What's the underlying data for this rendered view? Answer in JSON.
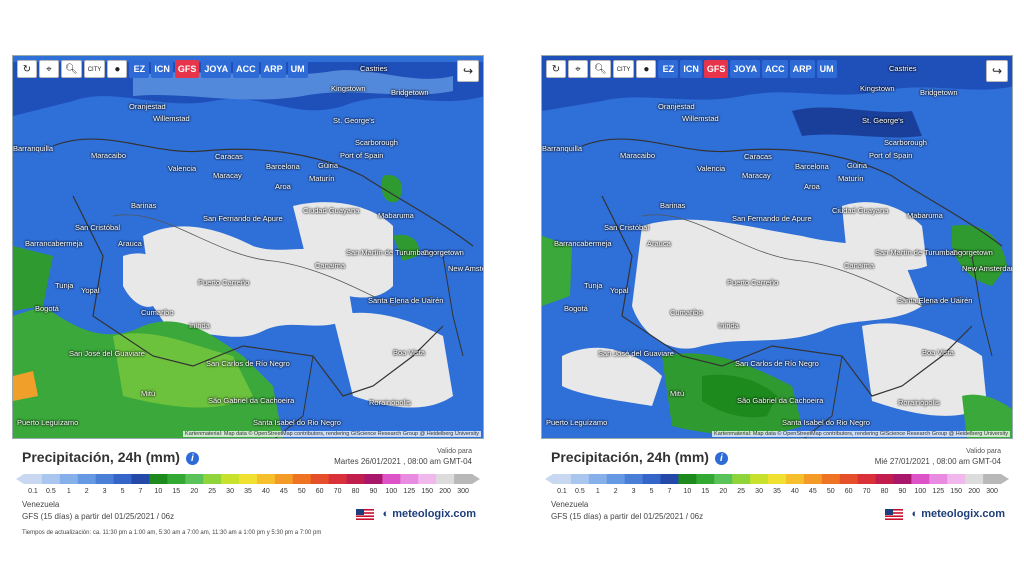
{
  "toolbar": {
    "icons": [
      "refresh-icon",
      "location-pin-icon",
      "zoom-icon",
      "city-icon",
      "dot-icon"
    ],
    "city_label": "CITY",
    "models": [
      "EZ",
      "ICN",
      "GFS",
      "JOYA",
      "ACC",
      "ARP",
      "UM"
    ],
    "active_model": "GFS"
  },
  "legend": {
    "title": "Precipitación, 24h (mm)",
    "scale_values": [
      "0.1",
      "0.5",
      "1",
      "2",
      "3",
      "5",
      "7",
      "10",
      "15",
      "20",
      "25",
      "30",
      "35",
      "40",
      "45",
      "50",
      "60",
      "70",
      "80",
      "90",
      "100",
      "125",
      "150",
      "200",
      "300"
    ],
    "colors": [
      "#c8d8f0",
      "#a9c6ef",
      "#86b0ea",
      "#6699e3",
      "#4a7fd8",
      "#3565c8",
      "#2449a9",
      "#1c8a1c",
      "#33a833",
      "#59c259",
      "#8fd43a",
      "#c8e12d",
      "#f0e030",
      "#f5c02c",
      "#f39a27",
      "#ee7424",
      "#e5502a",
      "#d9303a",
      "#c21e4d",
      "#a9176b",
      "#dd54c8",
      "#e98be0",
      "#f0b8ed",
      "#dcdcdc",
      "#b8b8b8"
    ]
  },
  "attribution": "Kartenmaterial: Map data © OpenStreetMap contributors, rendering GIScience Research Group @ Heidelberg University",
  "brand": "meteologix.com",
  "panels": [
    {
      "valid_label": "Valido para",
      "valid_date": "Martes 26/01/2021 , 08:00 am GMT-04",
      "region": "Venezuela",
      "run": "GFS (15 días) a partir del 01/25/2021 / 06z",
      "footnote": "Tiempos de actualización: ca. 11:30 pm a 1:00 am, 5:30 am a 7:00 am, 11:30 am a 1:00 pm y 5:30 pm a 7:00 pm"
    },
    {
      "valid_label": "Valido para",
      "valid_date": "Mié 27/01/2021 , 08:00 am GMT-04",
      "region": "Venezuela",
      "run": "GFS (15 días) a partir del 01/25/2021 / 06z",
      "footnote": ""
    }
  ],
  "places": {
    "castries": "Castries",
    "kingstown": "Kingstown",
    "bridgetown": "Bridgetown",
    "oranjestad": "Oranjestad",
    "willemstad": "Willemstad",
    "st_georges": "St. George's",
    "scarborough": "Scarborough",
    "port_of_spain": "Port of Spain",
    "barranquilla": "Barranquilla",
    "maracaibo": "Maracaibo",
    "caracas": "Caracas",
    "valencia": "Valencia",
    "maracay": "Maracay",
    "barcelona": "Barcelona",
    "cumana": "Cumaná",
    "maturin": "Maturín",
    "guiria": "Güiria",
    "aroa": "Aroa",
    "barinas": "Barinas",
    "san_fernando": "San Fernando de Apure",
    "ciudad_guayana": "Ciudad Guayana",
    "mabaruma": "Mabaruma",
    "san_cristobal": "San Cristóbal",
    "barrancabermeja": "Barrancabermeja",
    "arauca": "Arauca",
    "georgetown": "Georgetown",
    "san_martin": "San Martín de Turumbang",
    "new_amsterdam": "New Amsterdam",
    "tunja": "Tunja",
    "yopal": "Yopal",
    "puerto_carreno": "Puerto Carreño",
    "canaima": "Canaima",
    "bogota": "Bogotá",
    "santa_elena": "Santa Elena de Uairén",
    "cumaribo": "Cumaribo",
    "inirida": "Inírida",
    "san_jose": "San José del Guaviare",
    "boa_vista": "Boa Vista",
    "san_carlos": "San Carlos de Río Negro",
    "mitu": "Mitú",
    "sao_gabriel": "São Gabriel da Cachoeira",
    "santa_isabel": "Santa Isabel do Rio Negro",
    "rorainopolis": "Rorainópolis",
    "puerto_leguizamo": "Puerto Leguízamo"
  }
}
